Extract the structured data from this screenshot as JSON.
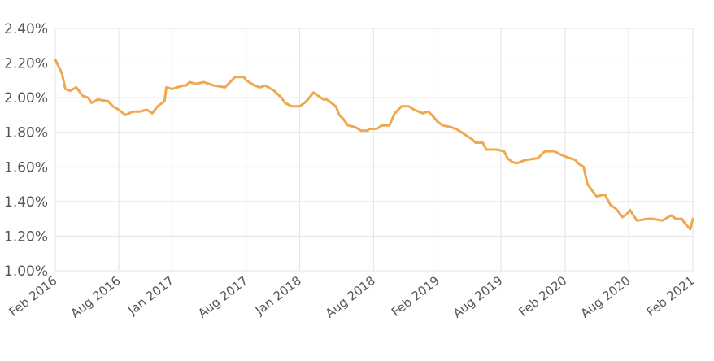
{
  "chart_data": {
    "type": "line",
    "title": "",
    "xlabel": "",
    "ylabel": "",
    "ylim": [
      1.0,
      2.4
    ],
    "y_ticks": [
      "1.00%",
      "1.20%",
      "1.40%",
      "1.60%",
      "1.80%",
      "2.00%",
      "2.20%",
      "2.40%"
    ],
    "y_tick_values": [
      1.0,
      1.2,
      1.4,
      1.6,
      1.8,
      2.0,
      2.2,
      2.4
    ],
    "x_ticks": [
      "Feb 2016",
      "Aug 2016",
      "Jan 2017",
      "Aug 2017",
      "Jan 2018",
      "Aug 2018",
      "Feb 2019",
      "Aug 2019",
      "Feb 2020",
      "Aug 2020",
      "Feb 2021"
    ],
    "x_tick_dates": [
      "2016-02-01",
      "2016-08-01",
      "2017-01-01",
      "2017-08-01",
      "2018-01-01",
      "2018-08-01",
      "2019-02-01",
      "2019-08-01",
      "2020-02-01",
      "2020-08-01",
      "2021-02-01"
    ],
    "grid": true,
    "colors": {
      "line": "#f0a850",
      "grid": "#e3e3e3",
      "text": "#555555"
    },
    "series": [
      {
        "x": [
          "2016-02-01",
          "2016-02-20",
          "2016-03-01",
          "2016-03-15",
          "2016-04-01",
          "2016-04-20",
          "2016-05-05",
          "2016-05-15",
          "2016-06-01",
          "2016-07-01",
          "2016-07-15",
          "2016-08-01",
          "2016-08-20",
          "2016-09-10",
          "2016-10-01",
          "2016-10-20",
          "2016-11-05",
          "2016-11-20",
          "2016-12-10",
          "2016-12-15",
          "2017-01-01",
          "2017-01-15",
          "2017-02-01",
          "2017-02-10",
          "2017-02-20",
          "2017-03-10",
          "2017-04-01",
          "2017-05-01",
          "2017-06-01",
          "2017-07-01",
          "2017-07-25",
          "2017-08-01",
          "2017-08-25",
          "2017-09-10",
          "2017-09-25",
          "2017-10-20",
          "2017-11-10",
          "2017-11-20",
          "2017-12-10",
          "2018-01-01",
          "2018-01-15",
          "2018-01-25",
          "2018-02-10",
          "2018-03-10",
          "2018-03-20",
          "2018-04-15",
          "2018-04-25",
          "2018-05-05",
          "2018-05-20",
          "2018-06-10",
          "2018-06-25",
          "2018-07-15",
          "2018-07-20",
          "2018-08-10",
          "2018-08-25",
          "2018-09-15",
          "2018-10-01",
          "2018-10-20",
          "2018-11-10",
          "2018-11-25",
          "2018-12-20",
          "2019-01-05",
          "2019-01-15",
          "2019-02-01",
          "2019-02-15",
          "2019-03-10",
          "2019-03-25",
          "2019-04-10",
          "2019-04-25",
          "2019-05-10",
          "2019-05-20",
          "2019-06-10",
          "2019-06-20",
          "2019-07-05",
          "2019-07-20",
          "2019-08-10",
          "2019-08-20",
          "2019-09-01",
          "2019-09-15",
          "2019-10-10",
          "2019-11-15",
          "2019-12-05",
          "2020-01-01",
          "2020-01-20",
          "2020-02-01",
          "2020-02-15",
          "2020-03-01",
          "2020-03-10",
          "2020-03-25",
          "2020-04-05",
          "2020-05-01",
          "2020-05-25",
          "2020-06-10",
          "2020-06-25",
          "2020-07-15",
          "2020-07-28",
          "2020-08-05",
          "2020-08-25",
          "2020-09-25",
          "2020-10-10",
          "2020-11-05",
          "2020-12-01",
          "2020-12-15",
          "2021-01-01",
          "2021-01-10",
          "2021-01-25",
          "2021-02-01"
        ],
        "values": [
          2.22,
          2.14,
          2.05,
          2.04,
          2.06,
          2.01,
          2.0,
          1.97,
          1.99,
          1.98,
          1.95,
          1.93,
          1.9,
          1.92,
          1.92,
          1.93,
          1.91,
          1.95,
          1.98,
          2.06,
          2.05,
          2.06,
          2.07,
          2.07,
          2.09,
          2.08,
          2.09,
          2.07,
          2.06,
          2.12,
          2.12,
          2.1,
          2.07,
          2.06,
          2.07,
          2.04,
          2.0,
          1.97,
          1.95,
          1.95,
          1.97,
          1.99,
          2.03,
          1.99,
          1.99,
          1.95,
          1.9,
          1.88,
          1.84,
          1.83,
          1.81,
          1.81,
          1.82,
          1.82,
          1.84,
          1.84,
          1.91,
          1.95,
          1.95,
          1.93,
          1.91,
          1.92,
          1.9,
          1.86,
          1.84,
          1.83,
          1.82,
          1.8,
          1.78,
          1.76,
          1.74,
          1.74,
          1.7,
          1.7,
          1.7,
          1.69,
          1.65,
          1.63,
          1.62,
          1.64,
          1.65,
          1.69,
          1.69,
          1.67,
          1.66,
          1.65,
          1.64,
          1.62,
          1.6,
          1.5,
          1.43,
          1.44,
          1.38,
          1.36,
          1.31,
          1.33,
          1.35,
          1.29,
          1.3,
          1.3,
          1.29,
          1.32,
          1.3,
          1.3,
          1.27,
          1.24,
          1.3
        ]
      }
    ]
  }
}
